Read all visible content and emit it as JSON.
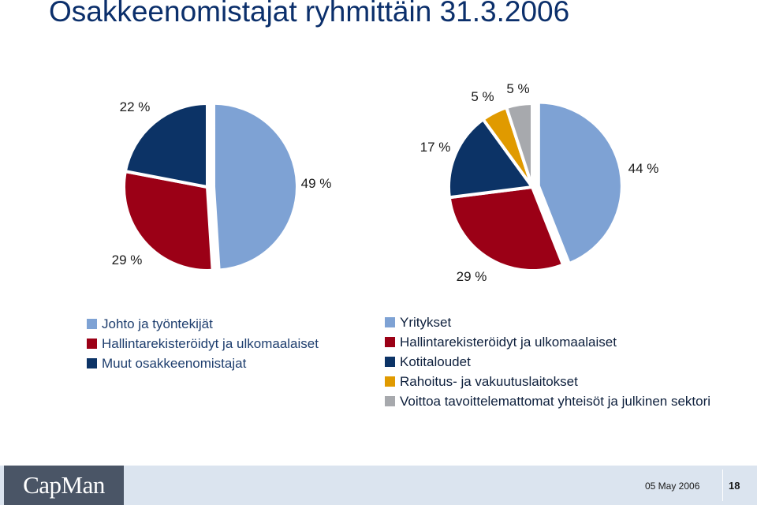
{
  "title": "Osakkeenomistajat ryhmittäin 31.3.2006",
  "chart_data": [
    {
      "type": "pie",
      "categories": [
        "Johto ja työntekijät",
        "Hallintarekisteröidyt ja ulkomaalaiset",
        "Muut osakkeenomistajat"
      ],
      "values": [
        49,
        29,
        22
      ],
      "labels": [
        "49 %",
        "29 %",
        "22 %"
      ],
      "colors": [
        "#7ea2d4",
        "#9b0016",
        "#0c3366"
      ],
      "exploded": "Johto ja työntekijät",
      "legend": "bottom-left"
    },
    {
      "type": "pie",
      "categories": [
        "Yritykset",
        "Hallintarekisteröidyt ja ulkomaalaiset",
        "Kotitaloudet",
        "Rahoitus- ja vakuutuslaitokset",
        "Voittoa tavoittelemattomat yhteisöt ja julkinen sektori"
      ],
      "values": [
        44,
        29,
        17,
        5,
        5
      ],
      "labels": [
        "44 %",
        "29 %",
        "17 %",
        "5 %",
        "5 %"
      ],
      "colors": [
        "#7ea2d4",
        "#9b0016",
        "#0c3366",
        "#e09a00",
        "#a7a9ad"
      ],
      "exploded": "Yritykset",
      "legend": "bottom-right"
    }
  ],
  "footer": {
    "logo": "CapMan",
    "date": "05 May 2006",
    "page": "18"
  }
}
